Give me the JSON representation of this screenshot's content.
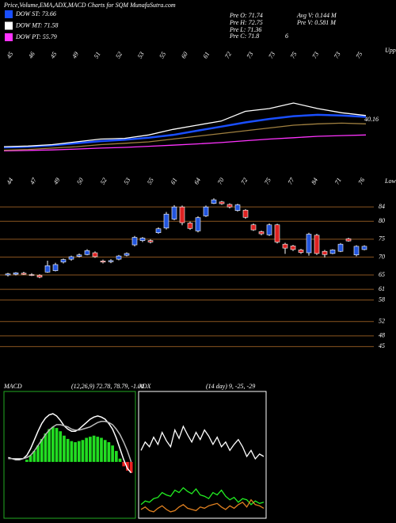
{
  "header": {
    "title": "Price,Volume,EMA,ADX,MACD Charts for SQM MunafaSutra.com",
    "info_left": [
      "Pre O: 71.74",
      "Pre H: 72.75",
      "Pre L: 71.36",
      "Pre C: 71.8"
    ],
    "info_right": [
      "Avg V: 0.144 M",
      "Pre V: 0.581 M"
    ],
    "info_extra": "6"
  },
  "chart_data": [
    {
      "type": "line",
      "side_label": "Upper",
      "annotation": "40.16",
      "top_labels": [
        "45",
        "46",
        "45",
        "49",
        "51",
        "52",
        "53",
        "55",
        "60",
        "61",
        "72",
        "73",
        "73",
        "75",
        "73",
        "73",
        "75"
      ],
      "x": [
        0,
        3,
        6,
        9,
        12,
        15,
        18,
        21,
        24,
        27,
        30,
        33,
        36,
        39,
        42,
        45
      ],
      "xlim": [
        0,
        45
      ],
      "ylim": [
        30,
        110
      ],
      "series": [
        {
          "name": "DOW ST: 73.66",
          "color": "#1a4fff",
          "values": [
            38,
            38.5,
            39.5,
            41,
            42.5,
            43.5,
            45,
            47,
            50,
            53,
            56,
            58.5,
            60.5,
            61.5,
            61,
            60
          ]
        },
        {
          "name": "DOW MT: 71.58",
          "color": "#ffffff",
          "values": [
            38.5,
            39,
            40,
            42,
            44,
            44.5,
            47,
            51,
            54,
            57,
            64,
            66,
            70,
            66,
            63,
            61
          ]
        },
        {
          "name": "DOW PT: 55.79",
          "color": "#ff33ff",
          "values": [
            35.5,
            35.8,
            36.2,
            36.8,
            37.5,
            38,
            38.8,
            39.6,
            40.5,
            41.5,
            42.8,
            44,
            45,
            46,
            46.5,
            47
          ]
        },
        {
          "color": "#a08040",
          "values": [
            36,
            36.5,
            37.5,
            38.5,
            40,
            41,
            42,
            44,
            46,
            48,
            50,
            52,
            54,
            55,
            55.5,
            55
          ]
        }
      ]
    },
    {
      "type": "candlestick",
      "side_label": "Lower",
      "top_labels": [
        "44",
        "47",
        "49",
        "50",
        "52",
        "53",
        "55",
        "61",
        "64",
        "70",
        "72",
        "75",
        "77",
        "84",
        "71",
        "76"
      ],
      "up_color": "#2255dd",
      "down_color": "#dd2222",
      "grid_color": "#8a5520",
      "ylim": [
        40,
        92
      ],
      "yticks": [
        84,
        80,
        75,
        70,
        65,
        61,
        58,
        52,
        48,
        45
      ],
      "open": [
        65,
        65.2,
        65.5,
        65.1,
        64.9,
        65.8,
        66.2,
        68.6,
        69.4,
        70.2,
        70.7,
        71.2,
        68.9,
        68.7,
        69.4,
        70.5,
        73.4,
        74.6,
        74.6,
        76.8,
        78.1,
        80.6,
        84,
        79.5,
        77.3,
        81.5,
        85,
        85.4,
        84.7,
        83,
        83.1,
        79,
        77.1,
        76.2,
        79,
        73.6,
        73.1,
        72,
        71.2,
        76.1,
        71.6,
        71,
        71.6,
        75.1,
        70.6,
        72.1
      ],
      "high": [
        65.6,
        65.8,
        65.9,
        65.5,
        65.2,
        69,
        68.4,
        69.6,
        70.4,
        71,
        72.2,
        71.6,
        69.3,
        69.4,
        70.6,
        71.3,
        75.9,
        75.6,
        75,
        78.3,
        82.6,
        84.5,
        84.4,
        79.9,
        81.4,
        84.4,
        86.4,
        85.7,
        85,
        84.9,
        83.4,
        79.4,
        77.4,
        79.4,
        79.3,
        74,
        73.4,
        72.3,
        76.8,
        76.5,
        72,
        72.2,
        73.9,
        75.4,
        73.3,
        73.3
      ],
      "low": [
        64.6,
        64.9,
        65,
        64.7,
        64.1,
        65.6,
        66,
        68.2,
        69,
        69.9,
        70.5,
        69.8,
        68.2,
        68.3,
        69.1,
        70.2,
        73,
        74.2,
        73.8,
        76.5,
        77.7,
        80.3,
        78.9,
        77.6,
        76.9,
        81.2,
        84.8,
        84.6,
        83.6,
        82.7,
        80.7,
        77.3,
        76.1,
        75.9,
        73.8,
        70.9,
        71.7,
        70.9,
        70.4,
        70.6,
        69.9,
        70.8,
        71.4,
        74.3,
        70.2,
        71.9
      ],
      "close": [
        65.3,
        65.6,
        65.2,
        64.9,
        64.4,
        67.6,
        67.9,
        69.3,
        70.1,
        70.6,
        71.8,
        70.1,
        68.6,
        69,
        70.3,
        71,
        75.5,
        75.3,
        74.2,
        77.9,
        82,
        84,
        79.6,
        78,
        81,
        84,
        86,
        84.9,
        84,
        84.6,
        81.1,
        77.6,
        76.5,
        79,
        74.2,
        72.5,
        72.1,
        71.3,
        76.4,
        71,
        70.7,
        72,
        73.6,
        74.5,
        73,
        73
      ]
    },
    {
      "type": "macd",
      "title": "MACD",
      "subtitle": "(12,26,9) 72.78, 78.79, -1.01",
      "frame_color": "#22aa22",
      "hist_color": "#22dd22",
      "neg_color": "#ee2222",
      "ylim": [
        -5,
        6
      ],
      "values": [
        0,
        0,
        0,
        0,
        0,
        0.2,
        0.6,
        1.0,
        1.5,
        2.1,
        2.6,
        3.0,
        3.2,
        3.1,
        2.8,
        2.4,
        2.1,
        1.9,
        1.8,
        1.9,
        2.0,
        2.2,
        2.3,
        2.4,
        2.3,
        2.2,
        2.0,
        1.8,
        1.5,
        1.0,
        0.3,
        -0.4,
        -0.8,
        -1.0
      ],
      "series": [
        {
          "color": "#ffffff",
          "values": [
            0.4,
            0.3,
            0.2,
            0.2,
            0.3,
            0.6,
            1.2,
            2.0,
            2.8,
            3.5,
            4.0,
            4.3,
            4.4,
            4.2,
            3.8,
            3.3,
            3.0,
            2.8,
            2.8,
            3.0,
            3.3,
            3.6,
            3.9,
            4.1,
            4.2,
            4.1,
            3.9,
            3.5,
            3.0,
            2.2,
            1.2,
            0.2,
            -0.6,
            -1.0
          ]
        },
        {
          "color": "#bbbbbb",
          "values": [
            0.3,
            0.3,
            0.3,
            0.3,
            0.3,
            0.4,
            0.6,
            1.0,
            1.5,
            2.0,
            2.5,
            2.9,
            3.2,
            3.4,
            3.4,
            3.3,
            3.2,
            3.0,
            2.9,
            2.9,
            3.0,
            3.1,
            3.2,
            3.4,
            3.6,
            3.7,
            3.7,
            3.6,
            3.4,
            3.0,
            2.5,
            1.8,
            1.0,
            0.0
          ]
        }
      ]
    },
    {
      "type": "line",
      "title": "ADX",
      "subtitle": "(14 day) 9, -25, -29",
      "frame_color": "#ffffff",
      "ylim": [
        0,
        100
      ],
      "series": [
        {
          "color": "#ffffff",
          "values": [
            55,
            62,
            58,
            66,
            60,
            70,
            63,
            58,
            72,
            65,
            75,
            68,
            62,
            70,
            64,
            72,
            67,
            60,
            66,
            58,
            62,
            55,
            60,
            64,
            58,
            50,
            55,
            48,
            52,
            50
          ]
        },
        {
          "color": "#22ee22",
          "values": [
            10,
            13,
            12,
            15,
            16,
            20,
            18,
            17,
            22,
            20,
            24,
            21,
            19,
            23,
            18,
            17,
            15,
            20,
            18,
            22,
            17,
            14,
            16,
            12,
            15,
            14,
            10,
            13,
            11,
            12
          ]
        },
        {
          "color": "#e08020",
          "values": [
            6,
            8,
            5,
            4,
            7,
            9,
            6,
            4,
            5,
            8,
            10,
            7,
            6,
            5,
            8,
            7,
            9,
            10,
            11,
            8,
            6,
            9,
            7,
            10,
            12,
            8,
            14,
            10,
            9,
            7
          ]
        }
      ]
    }
  ]
}
